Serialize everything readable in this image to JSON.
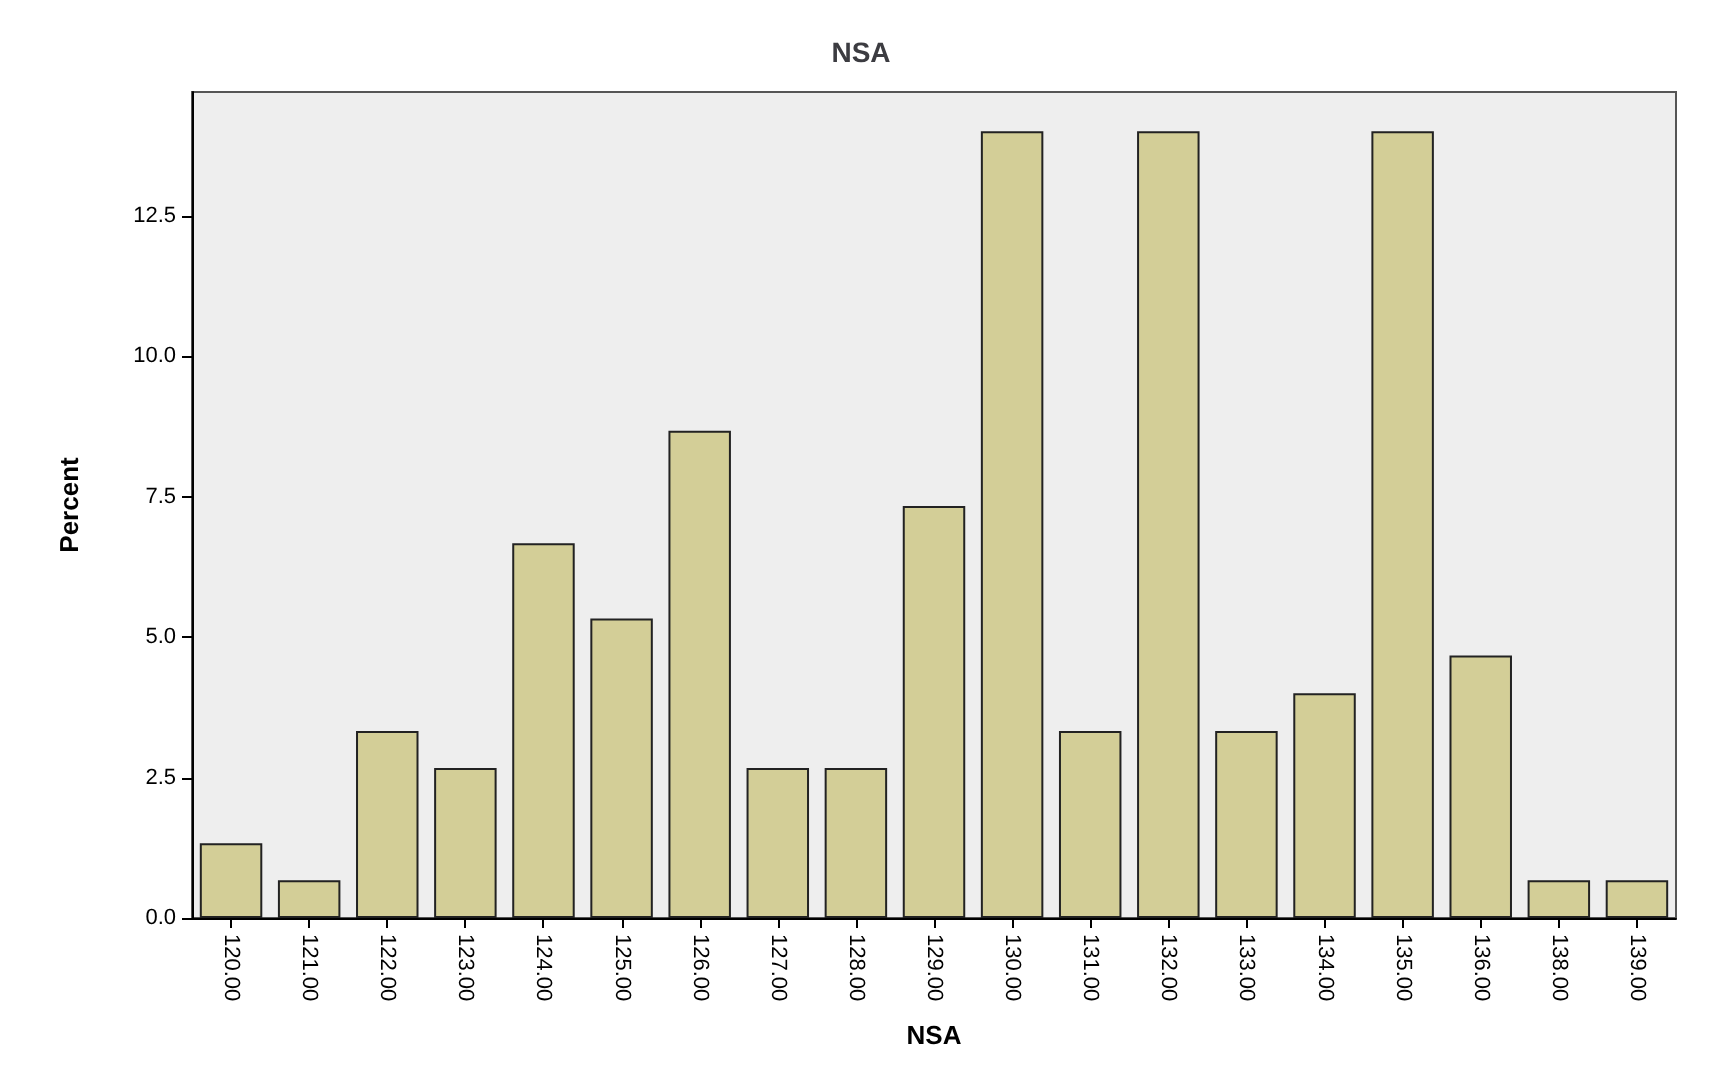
{
  "chart_data": {
    "type": "bar",
    "title": "NSA",
    "xlabel": "NSA",
    "ylabel": "Percent",
    "categories": [
      "120.00",
      "121.00",
      "122.00",
      "123.00",
      "124.00",
      "125.00",
      "126.00",
      "127.00",
      "128.00",
      "129.00",
      "130.00",
      "131.00",
      "132.00",
      "133.00",
      "134.00",
      "135.00",
      "136.00",
      "138.00",
      "139.00"
    ],
    "values": [
      1.33,
      0.67,
      3.33,
      2.67,
      6.67,
      5.33,
      8.67,
      2.67,
      2.67,
      7.33,
      14,
      3.33,
      14,
      3.33,
      4,
      14,
      4.67,
      0.67,
      0.67
    ],
    "color": "#d3ce97",
    "ylim": [
      0,
      14.7
    ],
    "yticks": [
      {
        "value": 0,
        "label": "0.0"
      },
      {
        "value": 2.5,
        "label": "2.5"
      },
      {
        "value": 5,
        "label": "5.0"
      },
      {
        "value": 7.5,
        "label": "7.5"
      },
      {
        "value": 10,
        "label": "10.0"
      },
      {
        "value": 12.5,
        "label": "12.5"
      }
    ],
    "grid": false
  }
}
